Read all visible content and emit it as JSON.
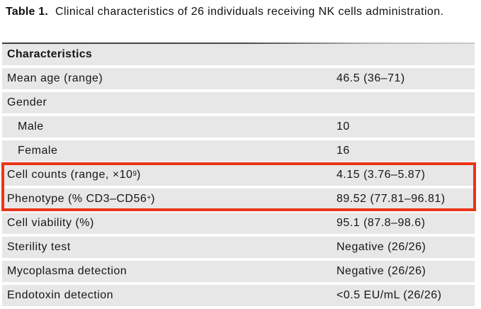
{
  "caption": {
    "label": "Table 1.",
    "text": "Clinical characteristics of 26 individuals receiving NK cells administration."
  },
  "table": {
    "header": "Characteristics",
    "row_bg": "#e7e7e7",
    "highlight_color": "#ea3517",
    "rows": [
      {
        "label": [
          {
            "t": "Mean age (range)"
          }
        ],
        "value": "46.5 (36–71)",
        "indent": false,
        "highlighted": false
      },
      {
        "label": [
          {
            "t": "Gender"
          }
        ],
        "value": "",
        "indent": false,
        "highlighted": false
      },
      {
        "label": [
          {
            "t": "Male"
          }
        ],
        "value": "10",
        "indent": true,
        "highlighted": false
      },
      {
        "label": [
          {
            "t": "Female"
          }
        ],
        "value": "16",
        "indent": true,
        "highlighted": false
      },
      {
        "label": [
          {
            "t": "Cell counts (range, ×10"
          },
          {
            "t": "9",
            "sup": true
          },
          {
            "t": ")"
          }
        ],
        "value": "4.15 (3.76–5.87)",
        "indent": false,
        "highlighted": true
      },
      {
        "label": [
          {
            "t": "Phenotype (% CD3–CD56"
          },
          {
            "t": "+",
            "sup": true
          },
          {
            "t": ")"
          }
        ],
        "value": "89.52 (77.81–96.81)",
        "indent": false,
        "highlighted": true
      },
      {
        "label": [
          {
            "t": "Cell viability (%)"
          }
        ],
        "value": "95.1 (87.8–98.6)",
        "indent": false,
        "highlighted": false
      },
      {
        "label": [
          {
            "t": "Sterility test"
          }
        ],
        "value": "Negative (26/26)",
        "indent": false,
        "highlighted": false
      },
      {
        "label": [
          {
            "t": "Mycoplasma detection"
          }
        ],
        "value": "Negative (26/26)",
        "indent": false,
        "highlighted": false
      },
      {
        "label": [
          {
            "t": "Endotoxin detection"
          }
        ],
        "value": "<0.5 EU/mL (26/26)",
        "indent": false,
        "highlighted": false
      }
    ]
  }
}
